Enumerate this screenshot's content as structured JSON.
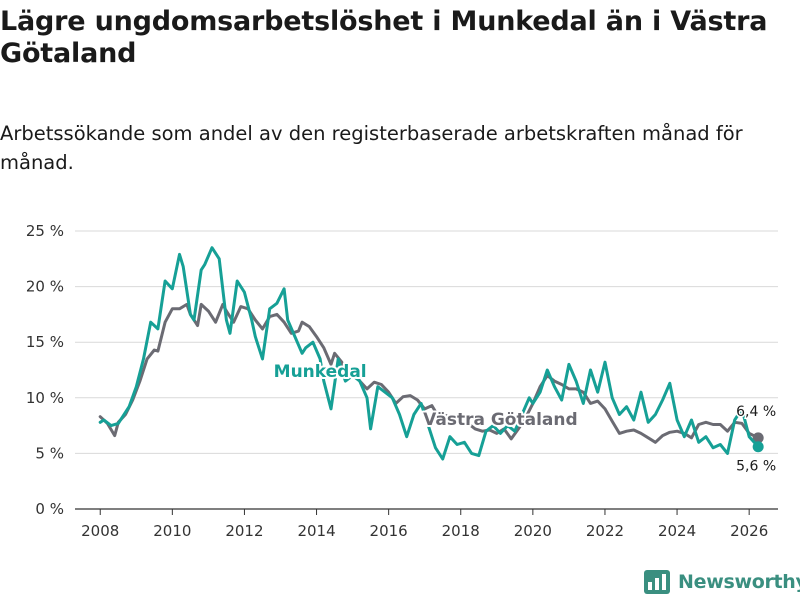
{
  "title": "Lägre ungdomsarbetslöshet i Munkedal än i Västra Götaland",
  "subtitle": "Arbetssökande som andel av den registerbaserade arbetskraften månad för månad.",
  "brand": "Newsworthy",
  "chart_data": {
    "type": "line",
    "title": "Lägre ungdomsarbetslöshet i Munkedal än i Västra Götaland",
    "xlabel": "",
    "ylabel": "",
    "xlim": [
      2007.3,
      2026.8
    ],
    "ylim": [
      0,
      25
    ],
    "x_ticks": [
      2008,
      2010,
      2012,
      2014,
      2016,
      2018,
      2020,
      2022,
      2024,
      2026
    ],
    "y_ticks": [
      0,
      5,
      10,
      15,
      20,
      25
    ],
    "y_tick_labels": [
      "0 %",
      "5 %",
      "10 %",
      "15 %",
      "20 %",
      "25 %"
    ],
    "grid": "horizontal",
    "series": [
      {
        "name": "Västra Götaland",
        "label": "Västra Götaland",
        "color": "#6b6b73",
        "end_value_label": "6,4 %",
        "points": [
          [
            2008.0,
            8.3
          ],
          [
            2008.2,
            7.7
          ],
          [
            2008.4,
            6.6
          ],
          [
            2008.5,
            7.8
          ],
          [
            2008.7,
            8.5
          ],
          [
            2008.9,
            9.8
          ],
          [
            2009.1,
            11.5
          ],
          [
            2009.3,
            13.5
          ],
          [
            2009.5,
            14.3
          ],
          [
            2009.6,
            14.2
          ],
          [
            2009.8,
            16.8
          ],
          [
            2010.0,
            18.0
          ],
          [
            2010.2,
            18.0
          ],
          [
            2010.4,
            18.4
          ],
          [
            2010.5,
            17.5
          ],
          [
            2010.7,
            16.5
          ],
          [
            2010.8,
            18.4
          ],
          [
            2011.0,
            17.8
          ],
          [
            2011.2,
            16.8
          ],
          [
            2011.4,
            18.4
          ],
          [
            2011.5,
            17.8
          ],
          [
            2011.7,
            16.8
          ],
          [
            2011.9,
            18.2
          ],
          [
            2012.1,
            18.0
          ],
          [
            2012.3,
            17.0
          ],
          [
            2012.5,
            16.2
          ],
          [
            2012.7,
            17.3
          ],
          [
            2012.9,
            17.5
          ],
          [
            2013.1,
            16.8
          ],
          [
            2013.3,
            15.8
          ],
          [
            2013.5,
            16.0
          ],
          [
            2013.6,
            16.8
          ],
          [
            2013.8,
            16.4
          ],
          [
            2014.0,
            15.5
          ],
          [
            2014.2,
            14.5
          ],
          [
            2014.4,
            13.0
          ],
          [
            2014.5,
            14.0
          ],
          [
            2014.7,
            13.2
          ],
          [
            2014.8,
            12.2
          ],
          [
            2015.0,
            12.5
          ],
          [
            2015.2,
            11.5
          ],
          [
            2015.4,
            10.8
          ],
          [
            2015.6,
            11.4
          ],
          [
            2015.8,
            11.2
          ],
          [
            2016.0,
            10.5
          ],
          [
            2016.2,
            9.5
          ],
          [
            2016.4,
            10.1
          ],
          [
            2016.6,
            10.2
          ],
          [
            2016.8,
            9.8
          ],
          [
            2017.0,
            9.0
          ],
          [
            2017.2,
            9.3
          ],
          [
            2017.4,
            8.2
          ],
          [
            2017.6,
            8.4
          ],
          [
            2017.8,
            8.1
          ],
          [
            2018.0,
            7.6
          ],
          [
            2018.2,
            7.7
          ],
          [
            2018.4,
            7.2
          ],
          [
            2018.6,
            7.0
          ],
          [
            2018.8,
            7.1
          ],
          [
            2019.0,
            6.8
          ],
          [
            2019.2,
            7.2
          ],
          [
            2019.4,
            6.3
          ],
          [
            2019.6,
            7.2
          ],
          [
            2019.8,
            8.2
          ],
          [
            2020.0,
            9.5
          ],
          [
            2020.2,
            11.0
          ],
          [
            2020.4,
            12.0
          ],
          [
            2020.6,
            11.5
          ],
          [
            2020.8,
            11.2
          ],
          [
            2021.0,
            10.8
          ],
          [
            2021.2,
            10.8
          ],
          [
            2021.4,
            10.5
          ],
          [
            2021.6,
            9.5
          ],
          [
            2021.8,
            9.7
          ],
          [
            2022.0,
            9.0
          ],
          [
            2022.2,
            7.9
          ],
          [
            2022.4,
            6.8
          ],
          [
            2022.6,
            7.0
          ],
          [
            2022.8,
            7.1
          ],
          [
            2023.0,
            6.8
          ],
          [
            2023.2,
            6.4
          ],
          [
            2023.4,
            6.0
          ],
          [
            2023.6,
            6.6
          ],
          [
            2023.8,
            6.9
          ],
          [
            2024.0,
            7.0
          ],
          [
            2024.2,
            6.8
          ],
          [
            2024.4,
            6.4
          ],
          [
            2024.6,
            7.6
          ],
          [
            2024.8,
            7.8
          ],
          [
            2025.0,
            7.6
          ],
          [
            2025.2,
            7.6
          ],
          [
            2025.4,
            7.0
          ],
          [
            2025.6,
            7.8
          ],
          [
            2025.8,
            7.7
          ],
          [
            2026.0,
            6.8
          ],
          [
            2026.25,
            6.4
          ]
        ]
      },
      {
        "name": "Munkedal",
        "label": "Munkedal",
        "color": "#16a096",
        "end_value_label": "5,6 %",
        "points": [
          [
            2008.0,
            7.8
          ],
          [
            2008.1,
            8.0
          ],
          [
            2008.3,
            7.5
          ],
          [
            2008.5,
            7.7
          ],
          [
            2008.6,
            8.2
          ],
          [
            2008.8,
            9.2
          ],
          [
            2009.0,
            11.0
          ],
          [
            2009.2,
            13.5
          ],
          [
            2009.4,
            16.8
          ],
          [
            2009.6,
            16.2
          ],
          [
            2009.8,
            20.5
          ],
          [
            2010.0,
            19.8
          ],
          [
            2010.2,
            22.9
          ],
          [
            2010.3,
            21.8
          ],
          [
            2010.5,
            17.5
          ],
          [
            2010.6,
            17.0
          ],
          [
            2010.8,
            21.5
          ],
          [
            2010.9,
            22.0
          ],
          [
            2011.1,
            23.5
          ],
          [
            2011.3,
            22.5
          ],
          [
            2011.5,
            17.0
          ],
          [
            2011.6,
            15.8
          ],
          [
            2011.8,
            20.5
          ],
          [
            2012.0,
            19.5
          ],
          [
            2012.2,
            17.0
          ],
          [
            2012.3,
            15.5
          ],
          [
            2012.5,
            13.5
          ],
          [
            2012.7,
            18.0
          ],
          [
            2012.9,
            18.5
          ],
          [
            2013.1,
            19.8
          ],
          [
            2013.2,
            17.0
          ],
          [
            2013.4,
            15.5
          ],
          [
            2013.6,
            14.0
          ],
          [
            2013.7,
            14.5
          ],
          [
            2013.9,
            15.0
          ],
          [
            2014.1,
            13.5
          ],
          [
            2014.2,
            11.5
          ],
          [
            2014.4,
            9.0
          ],
          [
            2014.6,
            13.5
          ],
          [
            2014.8,
            11.5
          ],
          [
            2015.0,
            12.0
          ],
          [
            2015.2,
            11.5
          ],
          [
            2015.4,
            10.0
          ],
          [
            2015.5,
            7.2
          ],
          [
            2015.7,
            11.0
          ],
          [
            2015.9,
            10.5
          ],
          [
            2016.1,
            10.0
          ],
          [
            2016.3,
            8.5
          ],
          [
            2016.5,
            6.5
          ],
          [
            2016.7,
            8.5
          ],
          [
            2016.9,
            9.5
          ],
          [
            2017.1,
            7.5
          ],
          [
            2017.3,
            5.5
          ],
          [
            2017.5,
            4.5
          ],
          [
            2017.7,
            6.5
          ],
          [
            2017.9,
            5.8
          ],
          [
            2018.1,
            6.0
          ],
          [
            2018.3,
            5.0
          ],
          [
            2018.5,
            4.8
          ],
          [
            2018.7,
            7.0
          ],
          [
            2018.9,
            7.5
          ],
          [
            2019.1,
            6.8
          ],
          [
            2019.3,
            7.5
          ],
          [
            2019.5,
            7.0
          ],
          [
            2019.7,
            8.5
          ],
          [
            2019.9,
            10.0
          ],
          [
            2020.0,
            9.5
          ],
          [
            2020.2,
            10.5
          ],
          [
            2020.4,
            12.5
          ],
          [
            2020.6,
            11.0
          ],
          [
            2020.8,
            9.8
          ],
          [
            2021.0,
            13.0
          ],
          [
            2021.2,
            11.5
          ],
          [
            2021.4,
            9.5
          ],
          [
            2021.6,
            12.5
          ],
          [
            2021.8,
            10.5
          ],
          [
            2022.0,
            13.2
          ],
          [
            2022.2,
            10.0
          ],
          [
            2022.4,
            8.5
          ],
          [
            2022.6,
            9.2
          ],
          [
            2022.8,
            8.0
          ],
          [
            2023.0,
            10.5
          ],
          [
            2023.2,
            7.8
          ],
          [
            2023.4,
            8.5
          ],
          [
            2023.6,
            9.8
          ],
          [
            2023.8,
            11.3
          ],
          [
            2024.0,
            8.0
          ],
          [
            2024.2,
            6.5
          ],
          [
            2024.4,
            8.0
          ],
          [
            2024.6,
            6.0
          ],
          [
            2024.8,
            6.5
          ],
          [
            2025.0,
            5.5
          ],
          [
            2025.2,
            5.8
          ],
          [
            2025.4,
            5.0
          ],
          [
            2025.6,
            8.0
          ],
          [
            2025.8,
            9.0
          ],
          [
            2026.0,
            6.5
          ],
          [
            2026.25,
            5.6
          ]
        ]
      }
    ]
  }
}
